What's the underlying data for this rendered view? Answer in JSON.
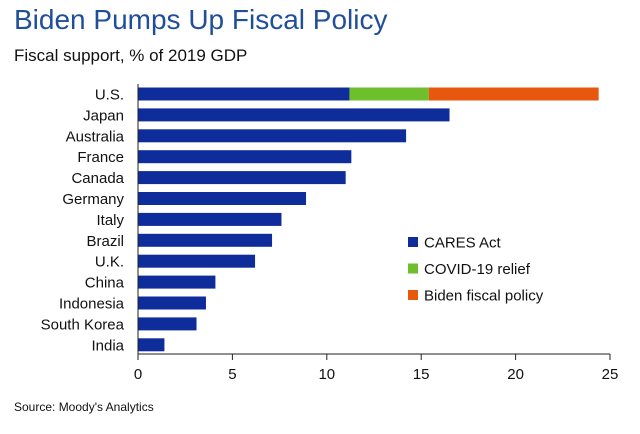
{
  "chart_data": {
    "type": "bar",
    "orientation": "horizontal",
    "stacked": true,
    "title": "Biden Pumps Up Fiscal Policy",
    "subtitle": "Fiscal support, % of 2019 GDP",
    "source": "Source: Moody's Analytics",
    "categories": [
      "U.S.",
      "Japan",
      "Australia",
      "France",
      "Canada",
      "Germany",
      "Italy",
      "Brazil",
      "U.K.",
      "China",
      "Indonesia",
      "South Korea",
      "India"
    ],
    "series": [
      {
        "name": "CARES Act",
        "color": "#0f2c9b",
        "values": [
          11.2,
          16.5,
          14.2,
          11.3,
          11.0,
          8.9,
          7.6,
          7.1,
          6.2,
          4.1,
          3.6,
          3.1,
          1.4
        ]
      },
      {
        "name": "COVID-19 relief",
        "color": "#6fbe2c",
        "values": [
          4.2,
          0,
          0,
          0,
          0,
          0,
          0,
          0,
          0,
          0,
          0,
          0,
          0
        ]
      },
      {
        "name": "Biden fiscal policy",
        "color": "#e8570e",
        "values": [
          9.0,
          0,
          0,
          0,
          0,
          0,
          0,
          0,
          0,
          0,
          0,
          0,
          0
        ]
      }
    ],
    "xlim": [
      0,
      25
    ],
    "xticks": [
      0,
      5,
      10,
      15,
      20,
      25
    ],
    "grid": false,
    "legend_position": "bottom-right"
  }
}
